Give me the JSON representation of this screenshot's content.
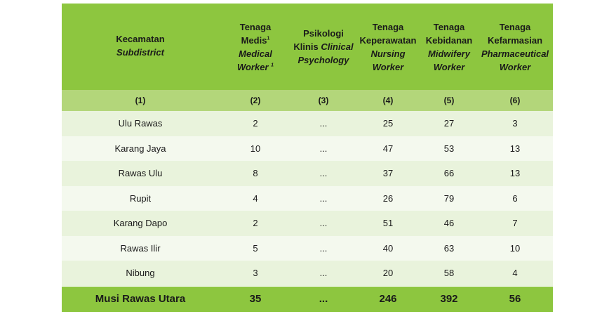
{
  "header": {
    "col1": {
      "id": "Kecamatan",
      "en": "Subdistrict"
    },
    "col2": {
      "id1": "Tenaga",
      "id2": "Medis",
      "sup": "1",
      "en1": "Medical",
      "en2": "Worker",
      "en_sup": "1"
    },
    "col3": {
      "id1": "Psikologi",
      "id2": "Klinis",
      "en1": "Clinical",
      "en2": "Psychology"
    },
    "col4": {
      "id1": "Tenaga",
      "id2": "Keperawatan",
      "en": "Nursing Worker"
    },
    "col5": {
      "id1": "Tenaga",
      "id2": "Kebidanan",
      "en1": "Midwifery",
      "en2": "Worker"
    },
    "col6": {
      "id1": "Tenaga",
      "id2": "Kefarmasian",
      "en1": "Pharmaceutical",
      "en2": "Worker"
    }
  },
  "col_numbers": [
    "(1)",
    "(2)",
    "(3)",
    "(4)",
    "(5)",
    "(6)"
  ],
  "rows": [
    {
      "name": "Ulu Rawas",
      "medis": "2",
      "psikologi": "...",
      "keperawatan": "25",
      "kebidanan": "27",
      "kefarmasian": "3"
    },
    {
      "name": "Karang Jaya",
      "medis": "10",
      "psikologi": "...",
      "keperawatan": "47",
      "kebidanan": "53",
      "kefarmasian": "13"
    },
    {
      "name": "Rawas Ulu",
      "medis": "8",
      "psikologi": "...",
      "keperawatan": "37",
      "kebidanan": "66",
      "kefarmasian": "13"
    },
    {
      "name": "Rupit",
      "medis": "4",
      "psikologi": "...",
      "keperawatan": "26",
      "kebidanan": "79",
      "kefarmasian": "6"
    },
    {
      "name": "Karang Dapo",
      "medis": "2",
      "psikologi": "...",
      "keperawatan": "51",
      "kebidanan": "46",
      "kefarmasian": "7"
    },
    {
      "name": "Rawas Ilir",
      "medis": "5",
      "psikologi": "...",
      "keperawatan": "40",
      "kebidanan": "63",
      "kefarmasian": "10"
    },
    {
      "name": "Nibung",
      "medis": "3",
      "psikologi": "...",
      "keperawatan": "20",
      "kebidanan": "58",
      "kefarmasian": "4"
    }
  ],
  "total": {
    "name": "Musi Rawas Utara",
    "medis": "35",
    "psikologi": "...",
    "keperawatan": "246",
    "kebidanan": "392",
    "kefarmasian": "56"
  },
  "colors": {
    "header": "#8dc63f",
    "number_row": "#b3d67a",
    "row_odd": "#e9f3dc",
    "row_even": "#f4f9ee",
    "total": "#8dc63f"
  }
}
